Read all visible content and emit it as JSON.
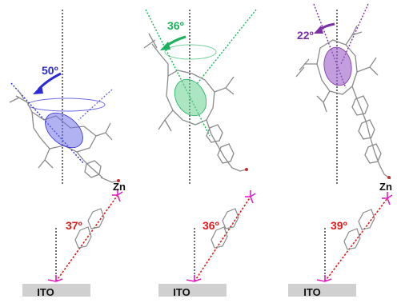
{
  "panels": [
    {
      "tilt_top": "50º",
      "tilt_bottom": "37º",
      "metal": "Zn",
      "substrate": "ITO",
      "tilt_color": "#2b2bd6",
      "ellipsoid_color": "#6f72e8"
    },
    {
      "tilt_top": "36º",
      "tilt_bottom": "36º",
      "metal": "",
      "substrate": "ITO",
      "tilt_color": "#19b25a",
      "ellipsoid_color": "#66d08f"
    },
    {
      "tilt_top": "22º",
      "tilt_bottom": "39º",
      "metal": "Zn",
      "substrate": "ITO",
      "tilt_color": "#7a2fa6",
      "ellipsoid_color": "#9a5ec8"
    }
  ],
  "colors": {
    "bottom_angle": "#e01b1b",
    "linker_phosphorus": "#e020c8",
    "structure": "#8a8a8a",
    "reference_line": "#222222"
  }
}
